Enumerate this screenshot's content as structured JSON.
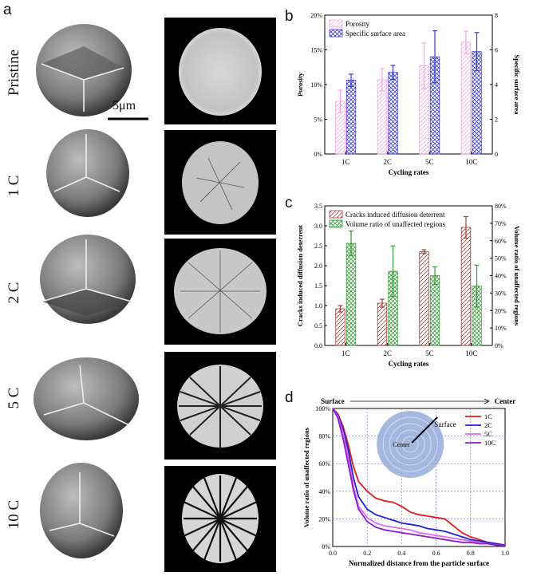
{
  "panels": {
    "a": "a",
    "b": "b",
    "c": "c",
    "d": "d"
  },
  "panel_a": {
    "rows": [
      "Pristine",
      "1 C",
      "2 C",
      "5 C",
      "10 C"
    ],
    "scale_bar": "5μm"
  },
  "chart_data": [
    {
      "type": "bar",
      "panel": "b",
      "categories": [
        "1C",
        "2C",
        "5C",
        "10C"
      ],
      "xlabel": "Cycling rates",
      "ylabel": "Porosity",
      "y2label": "Specific surface area",
      "ylim": [
        0,
        20
      ],
      "yticks": [
        "0%",
        "5%",
        "10%",
        "15%",
        "20%"
      ],
      "y2lim": [
        0,
        8
      ],
      "y2ticks": [
        "0",
        "2",
        "4",
        "6",
        "8"
      ],
      "legend_placement": "top-left",
      "series": [
        {
          "name": "Porosity",
          "axis": "left",
          "values": [
            7.6,
            10.7,
            12.7,
            16.1
          ],
          "errors": [
            1.6,
            1.6,
            3.3,
            1.6
          ],
          "color": "#f5a6e6"
        },
        {
          "name": "Specific surface area",
          "axis": "right",
          "values": [
            4.25,
            4.7,
            5.6,
            5.9
          ],
          "errors": [
            0.35,
            0.4,
            1.5,
            1.1
          ],
          "color": "#3a3ad6"
        }
      ]
    },
    {
      "type": "bar",
      "panel": "c",
      "categories": [
        "1C",
        "2C",
        "5C",
        "10C"
      ],
      "xlabel": "Cycling rates",
      "ylabel": "Cracks induced diffusion deterrent",
      "y2label": "Volume ratio of unaffected regions",
      "ylim": [
        0,
        3.5
      ],
      "yticks": [
        "0.0",
        "0.5",
        "1.0",
        "1.5",
        "2.0",
        "2.5",
        "3.0",
        "3.5"
      ],
      "y2lim": [
        0,
        80
      ],
      "y2ticks": [
        "0%",
        "10%",
        "20%",
        "30%",
        "40%",
        "50%",
        "60%",
        "70%",
        "80%"
      ],
      "legend_placement": "top-left",
      "series": [
        {
          "name": "Cracks induced diffusion deterrent",
          "axis": "left",
          "values": [
            0.92,
            1.06,
            2.35,
            2.96
          ],
          "errors": [
            0.08,
            0.1,
            0.05,
            0.27
          ],
          "color": "#a04040"
        },
        {
          "name": "Volume ratio of unaffected regions",
          "axis": "right",
          "values": [
            58.5,
            42.5,
            40,
            34
          ],
          "errors": [
            7,
            14.5,
            5,
            12
          ],
          "color": "#3a9a3a"
        }
      ]
    },
    {
      "type": "line",
      "panel": "d",
      "xlabel": "Normalized distance from the particle surface",
      "ylabel": "Volume ratio of unaffected regions",
      "xlim": [
        0,
        1
      ],
      "xticks": [
        "0.0",
        "0.2",
        "0.4",
        "0.6",
        "0.8",
        "1.0"
      ],
      "ylim": [
        0,
        100
      ],
      "yticks": [
        "0%",
        "20%",
        "40%",
        "60%",
        "80%",
        "100%"
      ],
      "top_labels": {
        "left": "Surface",
        "right": "Center"
      },
      "inset_labels": {
        "surface": "Surface",
        "center": "Center"
      },
      "legend_placement": "top-right",
      "grid": true,
      "series": [
        {
          "name": "1C",
          "color": "#e01b1b",
          "x": [
            0,
            0.03,
            0.06,
            0.09,
            0.12,
            0.15,
            0.2,
            0.25,
            0.3,
            0.35,
            0.4,
            0.45,
            0.5,
            0.55,
            0.6,
            0.65,
            0.7,
            0.75,
            0.8,
            0.85,
            0.9,
            0.95,
            1.0
          ],
          "y": [
            100,
            96,
            87,
            74,
            58,
            47,
            40,
            35,
            33,
            32,
            29,
            25,
            23,
            22,
            21,
            20,
            15,
            10,
            7,
            5,
            3,
            2,
            1
          ]
        },
        {
          "name": "2C",
          "color": "#1f1fd6",
          "x": [
            0,
            0.03,
            0.06,
            0.09,
            0.12,
            0.15,
            0.2,
            0.25,
            0.3,
            0.35,
            0.4,
            0.45,
            0.5,
            0.55,
            0.6,
            0.65,
            0.7,
            0.75,
            0.8,
            0.85,
            0.9,
            0.95,
            1.0
          ],
          "y": [
            100,
            95,
            85,
            70,
            50,
            36,
            27,
            23,
            21,
            19,
            17,
            16,
            15,
            13,
            12,
            11,
            9,
            7,
            5,
            4,
            3,
            2,
            1
          ]
        },
        {
          "name": "5C",
          "color": "#e06be6",
          "x": [
            0,
            0.03,
            0.06,
            0.09,
            0.12,
            0.15,
            0.2,
            0.25,
            0.3,
            0.35,
            0.4,
            0.45,
            0.5,
            0.55,
            0.6,
            0.65,
            0.7,
            0.75,
            0.8,
            0.85,
            0.9,
            0.95,
            1.0
          ],
          "y": [
            100,
            94,
            82,
            64,
            44,
            29,
            21,
            17,
            15,
            14,
            13,
            12,
            10,
            9,
            8,
            7,
            6,
            5,
            4,
            3,
            2,
            1,
            1
          ]
        },
        {
          "name": "10C",
          "color": "#8a1bd6",
          "x": [
            0,
            0.03,
            0.06,
            0.09,
            0.12,
            0.15,
            0.2,
            0.25,
            0.3,
            0.35,
            0.4,
            0.45,
            0.5,
            0.55,
            0.6,
            0.65,
            0.7,
            0.75,
            0.8,
            0.85,
            0.9,
            0.95,
            1.0
          ],
          "y": [
            100,
            93,
            78,
            60,
            41,
            27,
            18,
            14,
            12,
            11,
            10,
            9,
            8,
            7,
            6,
            5,
            4,
            3,
            3,
            2,
            2,
            1,
            1
          ]
        }
      ]
    }
  ]
}
